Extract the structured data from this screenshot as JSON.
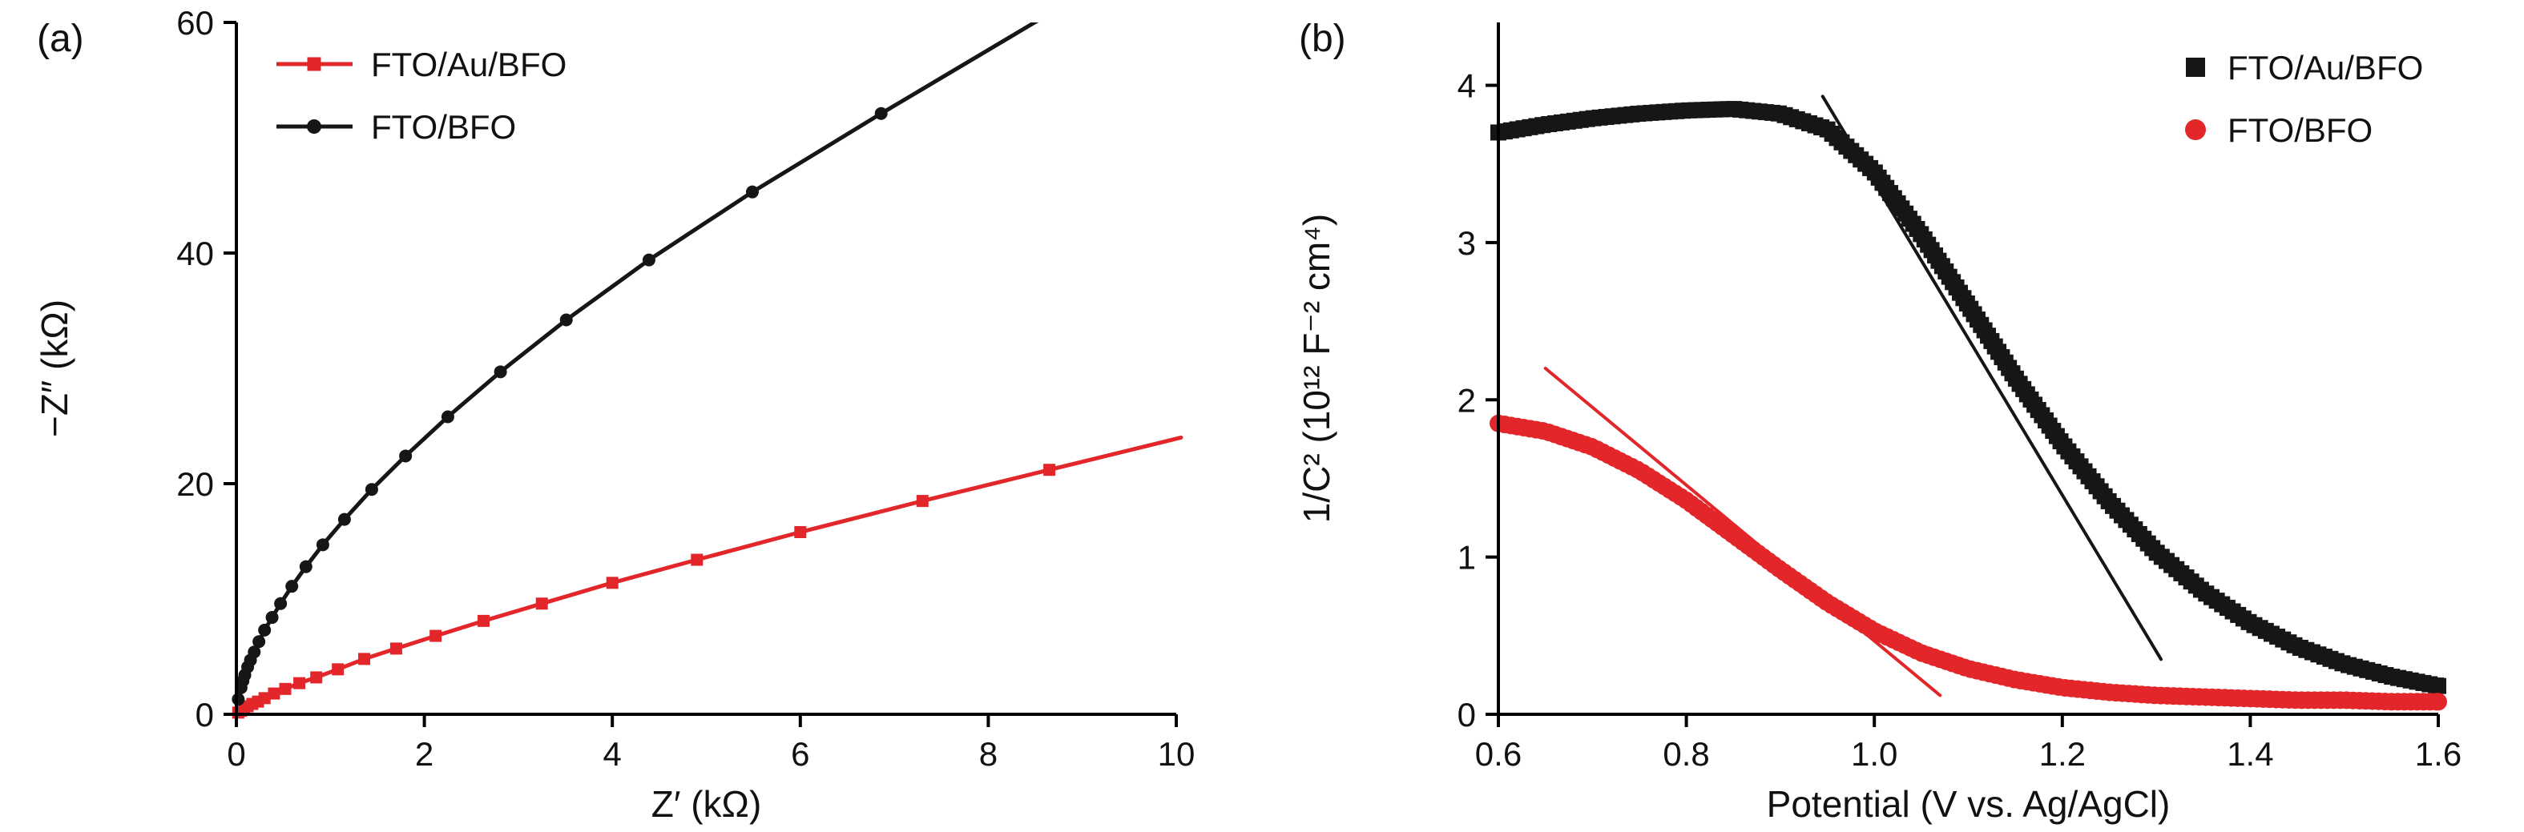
{
  "figure": {
    "background": "#ffffff"
  },
  "colors": {
    "red": "#e2262a",
    "black": "#161616",
    "axis": "#000000"
  },
  "chart_data": [
    {
      "type": "scatter",
      "panel_label": "(a)",
      "xlabel": "Z′ (kΩ)",
      "ylabel": "−Z″ (kΩ)",
      "xlim": [
        0,
        10
      ],
      "ylim": [
        0,
        60
      ],
      "grid": false,
      "xticks": [
        {
          "v": 0,
          "l": "0"
        },
        {
          "v": 2,
          "l": "2"
        },
        {
          "v": 4,
          "l": "4"
        },
        {
          "v": 6,
          "l": "6"
        },
        {
          "v": 8,
          "l": "8"
        },
        {
          "v": 10,
          "l": "10"
        }
      ],
      "yticks": [
        {
          "v": 0,
          "l": "0"
        },
        {
          "v": 20,
          "l": "20"
        },
        {
          "v": 40,
          "l": "40"
        },
        {
          "v": 60,
          "l": "60"
        }
      ],
      "legend": {
        "position": "top-left",
        "style": "line-marker"
      },
      "series": [
        {
          "name": "FTO/Au/BFO",
          "color": "#e2262a",
          "marker": "square",
          "marker_size": 15,
          "line_width": 5,
          "points": [
            [
              0.02,
              0.15
            ],
            [
              0.05,
              0.3
            ],
            [
              0.08,
              0.5
            ],
            [
              0.12,
              0.7
            ],
            [
              0.17,
              0.9
            ],
            [
              0.23,
              1.1
            ],
            [
              0.3,
              1.4
            ],
            [
              0.4,
              1.8
            ],
            [
              0.52,
              2.2
            ],
            [
              0.67,
              2.7
            ],
            [
              0.85,
              3.2
            ],
            [
              1.08,
              3.9
            ],
            [
              1.36,
              4.8
            ],
            [
              1.7,
              5.7
            ],
            [
              2.12,
              6.8
            ],
            [
              2.63,
              8.1
            ],
            [
              3.25,
              9.6
            ],
            [
              4.0,
              11.4
            ],
            [
              4.9,
              13.4
            ],
            [
              6.0,
              15.8
            ],
            [
              7.3,
              18.5
            ],
            [
              8.65,
              21.2
            ]
          ],
          "extend": [
            [
              10.05,
              24.0
            ]
          ]
        },
        {
          "name": "FTO/BFO",
          "color": "#161616",
          "marker": "circle",
          "marker_size": 16,
          "line_width": 5,
          "points": [
            [
              0.02,
              1.3
            ],
            [
              0.05,
              2.3
            ],
            [
              0.07,
              2.9
            ],
            [
              0.09,
              3.4
            ],
            [
              0.12,
              4.1
            ],
            [
              0.15,
              4.7
            ],
            [
              0.19,
              5.4
            ],
            [
              0.24,
              6.3
            ],
            [
              0.3,
              7.3
            ],
            [
              0.38,
              8.4
            ],
            [
              0.47,
              9.6
            ],
            [
              0.59,
              11.1
            ],
            [
              0.74,
              12.8
            ],
            [
              0.92,
              14.7
            ],
            [
              1.15,
              16.9
            ],
            [
              1.44,
              19.5
            ],
            [
              1.8,
              22.4
            ],
            [
              2.25,
              25.8
            ],
            [
              2.81,
              29.7
            ],
            [
              3.51,
              34.2
            ],
            [
              4.39,
              39.4
            ],
            [
              5.49,
              45.3
            ],
            [
              6.86,
              52.1
            ]
          ],
          "extend": [
            [
              8.7,
              61.0
            ]
          ]
        }
      ]
    },
    {
      "type": "scatter",
      "panel_label": "(b)",
      "xlabel": "Potential (V vs. Ag/AgCl)",
      "ylabel": "1/C² (10¹² F⁻² cm⁴)",
      "xlim": [
        0.6,
        1.6
      ],
      "ylim": [
        0,
        4.4
      ],
      "grid": false,
      "xticks": [
        {
          "v": 0.6,
          "l": "0.6"
        },
        {
          "v": 0.8,
          "l": "0.8"
        },
        {
          "v": 1.0,
          "l": "1.0"
        },
        {
          "v": 1.2,
          "l": "1.2"
        },
        {
          "v": 1.4,
          "l": "1.4"
        },
        {
          "v": 1.6,
          "l": "1.6"
        }
      ],
      "yticks": [
        {
          "v": 0,
          "l": "0"
        },
        {
          "v": 1,
          "l": "1"
        },
        {
          "v": 2,
          "l": "2"
        },
        {
          "v": 3,
          "l": "3"
        },
        {
          "v": 4,
          "l": "4"
        }
      ],
      "legend": {
        "position": "top-right",
        "style": "marker"
      },
      "series": [
        {
          "name": "FTO/Au/BFO",
          "color": "#161616",
          "marker": "square",
          "marker_size": 20,
          "dense": true,
          "marker_step": 8,
          "line_width": 8,
          "points": [
            [
              0.6,
              3.7
            ],
            [
              0.65,
              3.75
            ],
            [
              0.7,
              3.79
            ],
            [
              0.75,
              3.82
            ],
            [
              0.8,
              3.84
            ],
            [
              0.85,
              3.85
            ],
            [
              0.9,
              3.82
            ],
            [
              0.95,
              3.72
            ],
            [
              1.0,
              3.45
            ],
            [
              1.05,
              3.05
            ],
            [
              1.1,
              2.6
            ],
            [
              1.15,
              2.14
            ],
            [
              1.2,
              1.72
            ],
            [
              1.25,
              1.35
            ],
            [
              1.3,
              1.03
            ],
            [
              1.35,
              0.78
            ],
            [
              1.4,
              0.58
            ],
            [
              1.45,
              0.43
            ],
            [
              1.5,
              0.32
            ],
            [
              1.55,
              0.24
            ],
            [
              1.6,
              0.18
            ]
          ]
        },
        {
          "name": "FTO/BFO",
          "color": "#e2262a",
          "marker": "circle",
          "marker_size": 22,
          "dense": true,
          "marker_step": 8,
          "line_width": 8,
          "points": [
            [
              0.6,
              1.85
            ],
            [
              0.65,
              1.8
            ],
            [
              0.7,
              1.7
            ],
            [
              0.75,
              1.55
            ],
            [
              0.8,
              1.36
            ],
            [
              0.85,
              1.14
            ],
            [
              0.9,
              0.92
            ],
            [
              0.95,
              0.71
            ],
            [
              1.0,
              0.53
            ],
            [
              1.05,
              0.39
            ],
            [
              1.1,
              0.29
            ],
            [
              1.15,
              0.22
            ],
            [
              1.2,
              0.17
            ],
            [
              1.25,
              0.14
            ],
            [
              1.3,
              0.12
            ],
            [
              1.35,
              0.11
            ],
            [
              1.4,
              0.1
            ],
            [
              1.45,
              0.09
            ],
            [
              1.5,
              0.09
            ],
            [
              1.55,
              0.08
            ],
            [
              1.6,
              0.08
            ]
          ]
        },
        {
          "name": "tangent-FTO/Au/BFO",
          "color": "#161616",
          "marker": "none",
          "line_width": 4,
          "in_legend": false,
          "points": [
            [
              0.945,
              3.93
            ],
            [
              1.305,
              0.35
            ]
          ]
        },
        {
          "name": "tangent-FTO/BFO",
          "color": "#e2262a",
          "marker": "none",
          "line_width": 4,
          "in_legend": false,
          "points": [
            [
              0.65,
              2.2
            ],
            [
              1.07,
              0.12
            ]
          ]
        }
      ]
    }
  ]
}
